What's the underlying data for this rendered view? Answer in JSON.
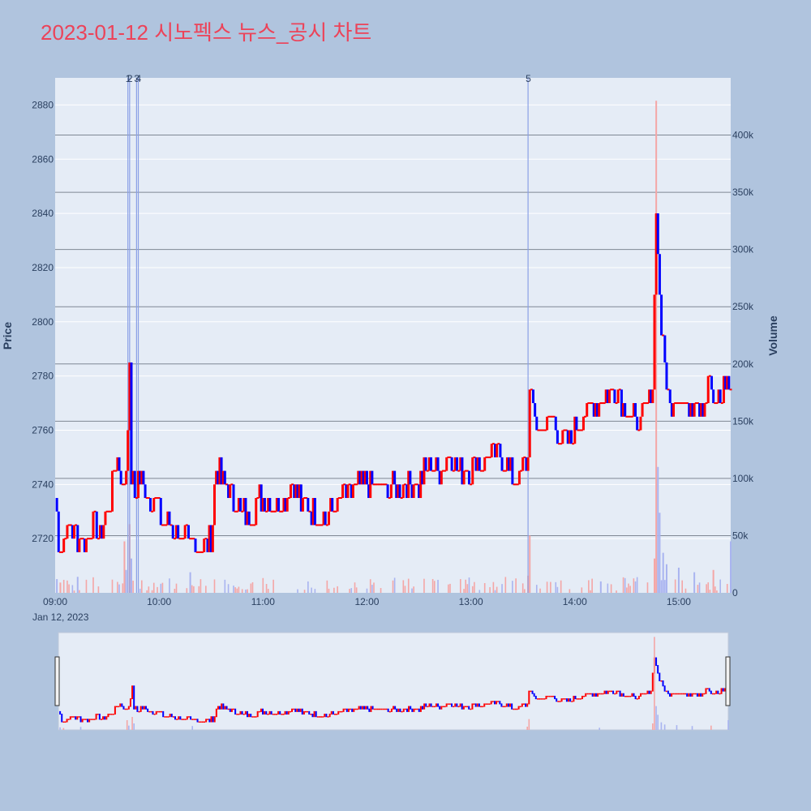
{
  "chart_data": {
    "type": "candlestick",
    "title": "2023-01-12 시노펙스 뉴스_공시 차트",
    "ylabel": "Price",
    "y2label": "Volume",
    "date_label": "Jan 12, 2023",
    "x_range": [
      "09:00",
      "15:30"
    ],
    "ylim": [
      2700,
      2890
    ],
    "y2lim": [
      0,
      450000
    ],
    "y_ticks": [
      2720,
      2740,
      2760,
      2780,
      2800,
      2820,
      2840,
      2860,
      2880
    ],
    "y2_ticks": [
      0,
      50000,
      100000,
      150000,
      200000,
      250000,
      300000,
      350000,
      400000
    ],
    "y2_tick_labels": [
      "0",
      "50k",
      "100k",
      "150k",
      "200k",
      "250k",
      "300k",
      "350k",
      "400k"
    ],
    "x_ticks": [
      "09:00",
      "10:00",
      "11:00",
      "12:00",
      "13:00",
      "14:00",
      "15:00"
    ],
    "annotations": [
      {
        "label": "1",
        "time": "09:42"
      },
      {
        "label": "2",
        "time": "09:43"
      },
      {
        "label": "3",
        "time": "09:47"
      },
      {
        "label": "4",
        "time": "09:48"
      },
      {
        "label": "5",
        "time": "13:33"
      }
    ],
    "colors": {
      "up": "#ff0000",
      "down": "#0000ff",
      "vol_up": "#f4a6a6",
      "vol_down": "#a9b4f0",
      "annotation_line": "#8aa0e6"
    },
    "price_path": [
      [
        "09:00",
        2735
      ],
      [
        "09:02",
        2720
      ],
      [
        "09:04",
        2715
      ],
      [
        "09:06",
        2722
      ],
      [
        "09:08",
        2725
      ],
      [
        "09:12",
        2722
      ],
      [
        "09:18",
        2720
      ],
      [
        "09:22",
        2724
      ],
      [
        "09:26",
        2722
      ],
      [
        "09:30",
        2730
      ],
      [
        "09:33",
        2738
      ],
      [
        "09:35",
        2750
      ],
      [
        "09:37",
        2745
      ],
      [
        "09:39",
        2737
      ],
      [
        "09:41",
        2745
      ],
      [
        "09:43",
        2780
      ],
      [
        "09:44",
        2745
      ],
      [
        "09:46",
        2735
      ],
      [
        "09:48",
        2743
      ],
      [
        "09:52",
        2738
      ],
      [
        "09:55",
        2732
      ],
      [
        "09:58",
        2735
      ],
      [
        "10:00",
        2730
      ],
      [
        "10:05",
        2725
      ],
      [
        "10:10",
        2722
      ],
      [
        "10:15",
        2718
      ],
      [
        "10:20",
        2720
      ],
      [
        "10:25",
        2718
      ],
      [
        "10:30",
        2720
      ],
      [
        "10:33",
        2745
      ],
      [
        "10:37",
        2742
      ],
      [
        "10:42",
        2735
      ],
      [
        "10:47",
        2730
      ],
      [
        "10:52",
        2728
      ],
      [
        "10:58",
        2735
      ],
      [
        "11:05",
        2732
      ],
      [
        "11:12",
        2735
      ],
      [
        "11:18",
        2742
      ],
      [
        "11:22",
        2733
      ],
      [
        "11:28",
        2730
      ],
      [
        "11:35",
        2727
      ],
      [
        "11:42",
        2732
      ],
      [
        "11:50",
        2738
      ],
      [
        "11:58",
        2740
      ],
      [
        "12:05",
        2740
      ],
      [
        "12:12",
        2738
      ],
      [
        "12:20",
        2738
      ],
      [
        "12:25",
        2742
      ],
      [
        "12:30",
        2740
      ],
      [
        "12:35",
        2748
      ],
      [
        "12:40",
        2745
      ],
      [
        "12:48",
        2750
      ],
      [
        "12:55",
        2745
      ],
      [
        "13:00",
        2746
      ],
      [
        "13:08",
        2750
      ],
      [
        "13:15",
        2752
      ],
      [
        "13:22",
        2745
      ],
      [
        "13:28",
        2742
      ],
      [
        "13:33",
        2750
      ],
      [
        "13:34",
        2778
      ],
      [
        "13:36",
        2765
      ],
      [
        "13:40",
        2760
      ],
      [
        "13:45",
        2765
      ],
      [
        "13:50",
        2760
      ],
      [
        "13:55",
        2755
      ],
      [
        "14:00",
        2760
      ],
      [
        "14:05",
        2765
      ],
      [
        "14:10",
        2768
      ],
      [
        "14:15",
        2770
      ],
      [
        "14:20",
        2775
      ],
      [
        "14:25",
        2775
      ],
      [
        "14:30",
        2768
      ],
      [
        "14:35",
        2762
      ],
      [
        "14:40",
        2765
      ],
      [
        "14:45",
        2775
      ],
      [
        "14:47",
        2845
      ],
      [
        "14:48",
        2825
      ],
      [
        "14:50",
        2795
      ],
      [
        "14:52",
        2785
      ],
      [
        "14:55",
        2770
      ],
      [
        "15:00",
        2775
      ],
      [
        "15:05",
        2768
      ],
      [
        "15:10",
        2772
      ],
      [
        "15:15",
        2770
      ],
      [
        "15:18",
        2778
      ],
      [
        "15:20",
        2768
      ],
      [
        "15:24",
        2772
      ],
      [
        "15:28",
        2780
      ],
      [
        "15:30",
        2775
      ]
    ],
    "volume_spikes": [
      [
        "09:01",
        12000,
        "down"
      ],
      [
        "09:03",
        9000,
        "up"
      ],
      [
        "09:13",
        14000,
        "down"
      ],
      [
        "09:40",
        45000,
        "up"
      ],
      [
        "09:41",
        20000,
        "down"
      ],
      [
        "09:43",
        60000,
        "up"
      ],
      [
        "09:44",
        30000,
        "down"
      ],
      [
        "10:18",
        18000,
        "down"
      ],
      [
        "13:33",
        15000,
        "up"
      ],
      [
        "13:34",
        50000,
        "up"
      ],
      [
        "14:15",
        10000,
        "down"
      ],
      [
        "14:46",
        30000,
        "up"
      ],
      [
        "14:47",
        430000,
        "up"
      ],
      [
        "14:48",
        110000,
        "down"
      ],
      [
        "14:49",
        70000,
        "down"
      ],
      [
        "14:51",
        35000,
        "down"
      ],
      [
        "14:53",
        25000,
        "down"
      ],
      [
        "15:00",
        22000,
        "down"
      ],
      [
        "15:09",
        18000,
        "down"
      ],
      [
        "15:20",
        20000,
        "up"
      ],
      [
        "15:30",
        45000,
        "down"
      ]
    ]
  }
}
